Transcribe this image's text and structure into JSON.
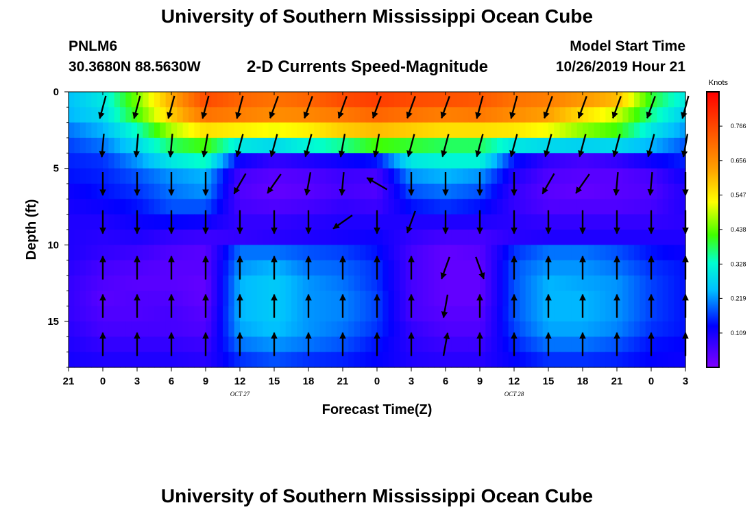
{
  "header": {
    "title": "University of Southern Mississippi Ocean Cube",
    "station": "PNLM6",
    "coords": "30.3680N 88.5630W",
    "subtitle": "2-D Currents Speed-Magnitude",
    "model_start_label": "Model Start Time",
    "model_start_value": "10/26/2019 Hour 21"
  },
  "footer": {
    "title": "University of Southern Mississippi Ocean Cube"
  },
  "chart_data": {
    "type": "heatmap",
    "title": "2-D Currents Speed-Magnitude",
    "xlabel": "Forecast Time(Z)",
    "ylabel": "Depth (ft)",
    "x_range_hours": [
      0,
      54
    ],
    "y_range_ft": [
      0,
      18
    ],
    "x_ticks": [
      {
        "h": 0,
        "label": "21"
      },
      {
        "h": 3,
        "label": "0"
      },
      {
        "h": 6,
        "label": "3"
      },
      {
        "h": 9,
        "label": "6"
      },
      {
        "h": 12,
        "label": "9"
      },
      {
        "h": 15,
        "label": "12"
      },
      {
        "h": 18,
        "label": "15"
      },
      {
        "h": 21,
        "label": "18"
      },
      {
        "h": 24,
        "label": "21"
      },
      {
        "h": 27,
        "label": "0"
      },
      {
        "h": 30,
        "label": "3"
      },
      {
        "h": 33,
        "label": "6"
      },
      {
        "h": 36,
        "label": "9"
      },
      {
        "h": 39,
        "label": "12"
      },
      {
        "h": 42,
        "label": "15"
      },
      {
        "h": 45,
        "label": "18"
      },
      {
        "h": 48,
        "label": "21"
      },
      {
        "h": 51,
        "label": "0"
      },
      {
        "h": 54,
        "label": "3"
      }
    ],
    "date_labels": [
      {
        "h": 15,
        "label": "OCT 27"
      },
      {
        "h": 39,
        "label": "OCT 28"
      }
    ],
    "y_ticks": [
      {
        "v": 0,
        "label": "0"
      },
      {
        "v": 5,
        "label": "5"
      },
      {
        "v": 10,
        "label": "10"
      },
      {
        "v": 15,
        "label": "15"
      }
    ],
    "colorbar": {
      "title": "Knots",
      "range": [
        0,
        0.875
      ],
      "ticks": [
        "0.109",
        "0.219",
        "0.328",
        "0.438",
        "0.547",
        "0.656",
        "0.766"
      ],
      "tick_values": [
        0.109,
        0.219,
        0.328,
        0.438,
        0.547,
        0.656,
        0.766
      ]
    },
    "speed_depth_ft": [
      0.5,
      1.5,
      2.5,
      3.5,
      4.5,
      5.5,
      6.5,
      7.5,
      8.5,
      9.5,
      10.5,
      11.5,
      12.5,
      13.5,
      14.5,
      15.5,
      16.5,
      17.5
    ],
    "speed_hours": [
      0,
      3,
      6,
      9,
      12,
      15,
      18,
      21,
      24,
      27,
      30,
      33,
      36,
      39,
      42,
      45,
      48,
      51,
      54
    ],
    "speed_knots": [
      [
        0.25,
        0.3,
        0.45,
        0.62,
        0.76,
        0.72,
        0.7,
        0.72,
        0.76,
        0.78,
        0.76,
        0.75,
        0.74,
        0.7,
        0.68,
        0.64,
        0.6,
        0.4,
        0.3
      ],
      [
        0.24,
        0.28,
        0.42,
        0.58,
        0.7,
        0.68,
        0.66,
        0.67,
        0.69,
        0.72,
        0.7,
        0.68,
        0.69,
        0.66,
        0.63,
        0.56,
        0.5,
        0.36,
        0.26
      ],
      [
        0.2,
        0.24,
        0.34,
        0.48,
        0.56,
        0.54,
        0.52,
        0.54,
        0.58,
        0.6,
        0.58,
        0.56,
        0.56,
        0.55,
        0.52,
        0.46,
        0.42,
        0.3,
        0.22
      ],
      [
        0.17,
        0.2,
        0.28,
        0.38,
        0.42,
        0.3,
        0.28,
        0.32,
        0.36,
        0.42,
        0.4,
        0.38,
        0.38,
        0.3,
        0.28,
        0.27,
        0.28,
        0.24,
        0.18
      ],
      [
        0.15,
        0.16,
        0.22,
        0.3,
        0.34,
        0.12,
        0.08,
        0.1,
        0.12,
        0.14,
        0.3,
        0.32,
        0.32,
        0.14,
        0.08,
        0.06,
        0.08,
        0.12,
        0.15
      ],
      [
        0.14,
        0.15,
        0.18,
        0.22,
        0.24,
        0.06,
        0.04,
        0.05,
        0.07,
        0.06,
        0.22,
        0.24,
        0.22,
        0.1,
        0.05,
        0.04,
        0.04,
        0.06,
        0.12
      ],
      [
        0.12,
        0.14,
        0.16,
        0.2,
        0.22,
        0.05,
        0.03,
        0.04,
        0.06,
        0.05,
        0.18,
        0.2,
        0.18,
        0.08,
        0.04,
        0.03,
        0.04,
        0.05,
        0.1
      ],
      [
        0.11,
        0.12,
        0.14,
        0.18,
        0.18,
        0.06,
        0.05,
        0.06,
        0.08,
        0.07,
        0.14,
        0.16,
        0.14,
        0.08,
        0.05,
        0.05,
        0.05,
        0.06,
        0.1
      ],
      [
        0.1,
        0.1,
        0.12,
        0.13,
        0.12,
        0.08,
        0.08,
        0.09,
        0.1,
        0.1,
        0.1,
        0.1,
        0.1,
        0.09,
        0.08,
        0.08,
        0.08,
        0.08,
        0.09
      ],
      [
        0.1,
        0.09,
        0.1,
        0.08,
        0.07,
        0.08,
        0.09,
        0.1,
        0.11,
        0.12,
        0.08,
        0.06,
        0.06,
        0.09,
        0.1,
        0.1,
        0.1,
        0.1,
        0.1
      ],
      [
        0.1,
        0.08,
        0.07,
        0.05,
        0.04,
        0.2,
        0.2,
        0.18,
        0.17,
        0.14,
        0.06,
        0.03,
        0.04,
        0.16,
        0.2,
        0.2,
        0.18,
        0.14,
        0.12
      ],
      [
        0.09,
        0.06,
        0.05,
        0.04,
        0.04,
        0.22,
        0.24,
        0.2,
        0.19,
        0.16,
        0.06,
        0.03,
        0.03,
        0.18,
        0.22,
        0.22,
        0.2,
        0.16,
        0.14
      ],
      [
        0.08,
        0.05,
        0.04,
        0.04,
        0.03,
        0.24,
        0.26,
        0.22,
        0.2,
        0.16,
        0.06,
        0.03,
        0.03,
        0.18,
        0.24,
        0.23,
        0.22,
        0.17,
        0.14
      ],
      [
        0.08,
        0.04,
        0.05,
        0.05,
        0.03,
        0.24,
        0.26,
        0.22,
        0.21,
        0.17,
        0.06,
        0.03,
        0.03,
        0.18,
        0.24,
        0.24,
        0.22,
        0.17,
        0.14
      ],
      [
        0.08,
        0.05,
        0.05,
        0.06,
        0.04,
        0.24,
        0.26,
        0.22,
        0.21,
        0.17,
        0.06,
        0.04,
        0.04,
        0.18,
        0.24,
        0.24,
        0.22,
        0.17,
        0.14
      ],
      [
        0.09,
        0.06,
        0.06,
        0.06,
        0.05,
        0.23,
        0.25,
        0.22,
        0.2,
        0.16,
        0.08,
        0.05,
        0.05,
        0.17,
        0.23,
        0.23,
        0.21,
        0.16,
        0.14
      ],
      [
        0.1,
        0.08,
        0.08,
        0.08,
        0.07,
        0.2,
        0.22,
        0.2,
        0.18,
        0.14,
        0.09,
        0.07,
        0.07,
        0.15,
        0.2,
        0.2,
        0.18,
        0.14,
        0.13
      ],
      [
        0.11,
        0.1,
        0.1,
        0.1,
        0.09,
        0.16,
        0.18,
        0.16,
        0.15,
        0.13,
        0.1,
        0.09,
        0.09,
        0.13,
        0.16,
        0.16,
        0.15,
        0.13,
        0.12
      ]
    ],
    "vector_depth_ft": [
      1,
      3.5,
      6,
      8.5,
      11.5,
      14,
      16.5
    ],
    "vector_hours": [
      3,
      6,
      9,
      12,
      15,
      18,
      21,
      24,
      27,
      30,
      33,
      36,
      39,
      42,
      45,
      48,
      51,
      54
    ],
    "vector_angle_deg": [
      [
        195,
        195,
        195,
        195,
        195,
        200,
        200,
        200,
        200,
        200,
        200,
        195,
        195,
        200,
        200,
        200,
        200,
        195
      ],
      [
        185,
        185,
        185,
        190,
        195,
        195,
        195,
        190,
        190,
        195,
        195,
        195,
        195,
        195,
        195,
        195,
        195,
        190
      ],
      [
        180,
        180,
        180,
        180,
        210,
        215,
        190,
        185,
        300,
        180,
        180,
        180,
        180,
        210,
        215,
        185,
        185,
        180
      ],
      [
        180,
        180,
        180,
        180,
        180,
        180,
        180,
        235,
        180,
        200,
        180,
        180,
        180,
        180,
        180,
        180,
        180,
        180
      ],
      [
        0,
        0,
        0,
        0,
        0,
        0,
        0,
        0,
        0,
        0,
        200,
        160,
        0,
        0,
        0,
        0,
        0,
        0
      ],
      [
        0,
        0,
        0,
        0,
        0,
        0,
        0,
        0,
        0,
        0,
        190,
        0,
        0,
        0,
        0,
        0,
        0,
        0
      ],
      [
        0,
        0,
        0,
        0,
        0,
        0,
        0,
        0,
        0,
        0,
        10,
        0,
        0,
        0,
        0,
        0,
        0,
        0
      ]
    ]
  }
}
